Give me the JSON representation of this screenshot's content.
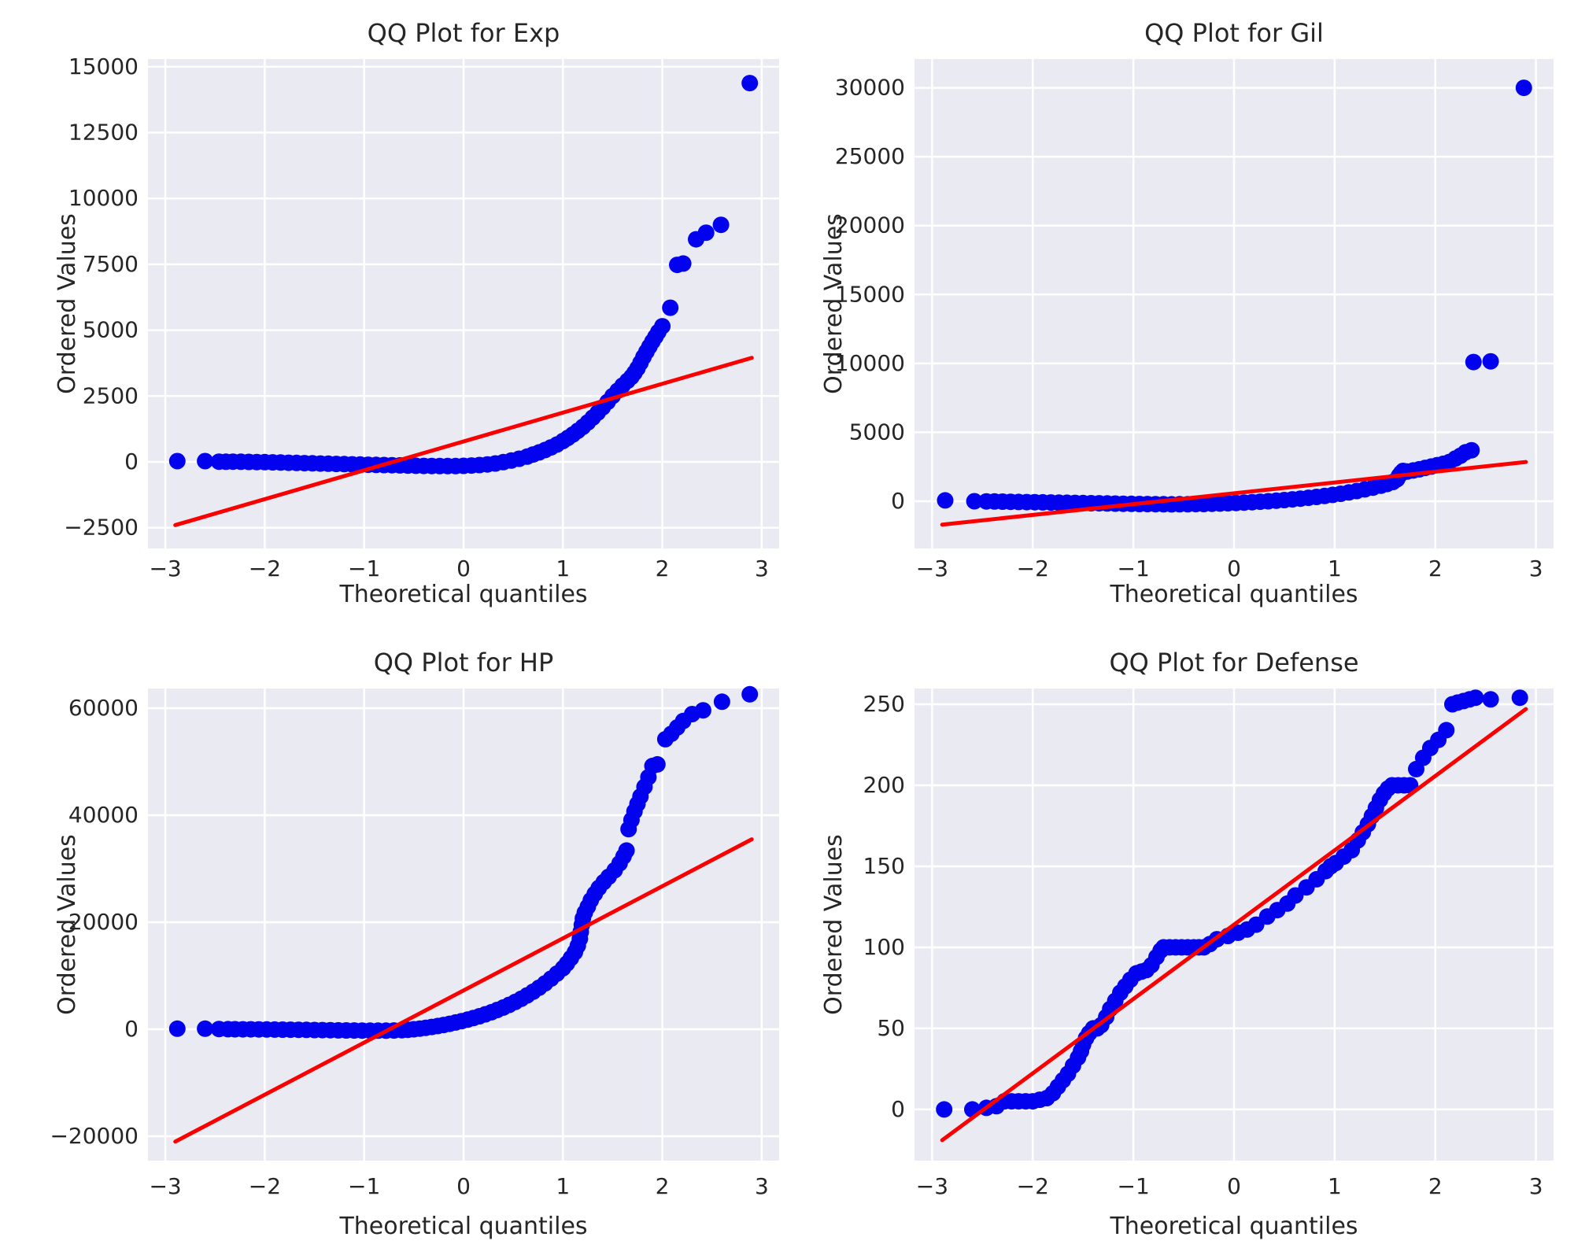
{
  "figure": {
    "background": "#ffffff",
    "axes_background": "#eaeaf2",
    "grid_color": "#ffffff",
    "point_color": "#0202ef",
    "line_color": "#fb0000",
    "text_color": "#262626"
  },
  "chart_data": [
    {
      "type": "scatter",
      "title": "QQ Plot for Exp",
      "xlabel": "Theoretical quantiles",
      "ylabel": "Ordered Values",
      "grid": true,
      "legend": "none",
      "xlim": [
        -3.175,
        3.175
      ],
      "ylim": [
        -3286,
        15293
      ],
      "xticks": [
        -3,
        -2,
        -1,
        0,
        1,
        2,
        3
      ],
      "yticks": [
        -2500,
        0,
        2500,
        5000,
        7500,
        10000,
        12500,
        15000
      ],
      "fit_line": {
        "x": [
          -2.9,
          2.9
        ],
        "y": [
          -2400,
          3950
        ]
      },
      "points": [
        [
          -2.88,
          30
        ],
        [
          -2.6,
          30
        ],
        [
          -2.46,
          10
        ],
        [
          -2.39,
          5
        ],
        [
          -2.32,
          10
        ],
        [
          -2.24,
          5
        ],
        [
          -2.16,
          0
        ],
        [
          -2.08,
          -5
        ],
        [
          -2.0,
          -10
        ],
        [
          -1.92,
          -18
        ],
        [
          -1.84,
          -25
        ],
        [
          -1.76,
          -33
        ],
        [
          -1.68,
          -40
        ],
        [
          -1.6,
          -48
        ],
        [
          -1.52,
          -55
        ],
        [
          -1.44,
          -62
        ],
        [
          -1.36,
          -70
        ],
        [
          -1.28,
          -78
        ],
        [
          -1.2,
          -85
        ],
        [
          -1.12,
          -92
        ],
        [
          -1.04,
          -100
        ],
        [
          -0.96,
          -107
        ],
        [
          -0.88,
          -113
        ],
        [
          -0.8,
          -120
        ],
        [
          -0.72,
          -127
        ],
        [
          -0.64,
          -133
        ],
        [
          -0.56,
          -140
        ],
        [
          -0.48,
          -146
        ],
        [
          -0.4,
          -152
        ],
        [
          -0.32,
          -156
        ],
        [
          -0.24,
          -159
        ],
        [
          -0.16,
          -160
        ],
        [
          -0.08,
          -158
        ],
        [
          0.0,
          -150
        ],
        [
          0.08,
          -138
        ],
        [
          0.16,
          -120
        ],
        [
          0.24,
          -95
        ],
        [
          0.32,
          -60
        ],
        [
          0.4,
          -10
        ],
        [
          0.48,
          50
        ],
        [
          0.56,
          120
        ],
        [
          0.64,
          200
        ],
        [
          0.7,
          280
        ],
        [
          0.76,
          360
        ],
        [
          0.82,
          450
        ],
        [
          0.88,
          550
        ],
        [
          0.94,
          660
        ],
        [
          1.0,
          790
        ],
        [
          1.05,
          910
        ],
        [
          1.1,
          1040
        ],
        [
          1.15,
          1180
        ],
        [
          1.2,
          1330
        ],
        [
          1.25,
          1500
        ],
        [
          1.3,
          1680
        ],
        [
          1.35,
          1870
        ],
        [
          1.4,
          2070
        ],
        [
          1.45,
          2280
        ],
        [
          1.5,
          2500
        ],
        [
          1.55,
          2700
        ],
        [
          1.6,
          2900
        ],
        [
          1.65,
          3080
        ],
        [
          1.69,
          3230
        ],
        [
          1.72,
          3380
        ],
        [
          1.75,
          3550
        ],
        [
          1.78,
          3760
        ],
        [
          1.81,
          3980
        ],
        [
          1.84,
          4180
        ],
        [
          1.87,
          4380
        ],
        [
          1.9,
          4570
        ],
        [
          1.93,
          4750
        ],
        [
          1.96,
          4930
        ],
        [
          2.0,
          5150
        ],
        [
          2.08,
          5850
        ],
        [
          2.15,
          7480
        ],
        [
          2.21,
          7530
        ],
        [
          2.34,
          8450
        ],
        [
          2.44,
          8700
        ],
        [
          2.59,
          9000
        ],
        [
          2.88,
          14380
        ]
      ]
    },
    {
      "type": "scatter",
      "title": "QQ Plot for Gil",
      "xlabel": "Theoretical quantiles",
      "ylabel": "Ordered Values",
      "grid": true,
      "legend": "none",
      "xlim": [
        -3.175,
        3.175
      ],
      "ylim": [
        -3426,
        32090
      ],
      "xticks": [
        -3,
        -2,
        -1,
        0,
        1,
        2,
        3
      ],
      "yticks": [
        0,
        5000,
        10000,
        15000,
        20000,
        25000,
        30000
      ],
      "fit_line": {
        "x": [
          -2.9,
          2.9
        ],
        "y": [
          -1700,
          2850
        ]
      },
      "points": [
        [
          -2.87,
          60
        ],
        [
          -2.58,
          0
        ],
        [
          -2.46,
          -10
        ],
        [
          -2.38,
          -20
        ],
        [
          -2.3,
          -30
        ],
        [
          -2.22,
          -40
        ],
        [
          -2.14,
          -50
        ],
        [
          -2.06,
          -60
        ],
        [
          -1.98,
          -70
        ],
        [
          -1.9,
          -80
        ],
        [
          -1.82,
          -90
        ],
        [
          -1.74,
          -100
        ],
        [
          -1.66,
          -110
        ],
        [
          -1.58,
          -120
        ],
        [
          -1.5,
          -130
        ],
        [
          -1.42,
          -140
        ],
        [
          -1.34,
          -150
        ],
        [
          -1.26,
          -160
        ],
        [
          -1.18,
          -170
        ],
        [
          -1.1,
          -180
        ],
        [
          -1.02,
          -190
        ],
        [
          -0.94,
          -200
        ],
        [
          -0.86,
          -208
        ],
        [
          -0.78,
          -214
        ],
        [
          -0.7,
          -218
        ],
        [
          -0.62,
          -220
        ],
        [
          -0.54,
          -219
        ],
        [
          -0.46,
          -215
        ],
        [
          -0.38,
          -208
        ],
        [
          -0.3,
          -198
        ],
        [
          -0.22,
          -185
        ],
        [
          -0.14,
          -168
        ],
        [
          -0.06,
          -148
        ],
        [
          0.02,
          -125
        ],
        [
          0.1,
          -98
        ],
        [
          0.18,
          -68
        ],
        [
          0.26,
          -35
        ],
        [
          0.34,
          0
        ],
        [
          0.42,
          40
        ],
        [
          0.5,
          85
        ],
        [
          0.58,
          135
        ],
        [
          0.66,
          190
        ],
        [
          0.74,
          250
        ],
        [
          0.82,
          315
        ],
        [
          0.9,
          385
        ],
        [
          0.98,
          460
        ],
        [
          1.06,
          545
        ],
        [
          1.14,
          640
        ],
        [
          1.22,
          745
        ],
        [
          1.3,
          860
        ],
        [
          1.38,
          990
        ],
        [
          1.46,
          1130
        ],
        [
          1.52,
          1250
        ],
        [
          1.58,
          1400
        ],
        [
          1.62,
          1600
        ],
        [
          1.64,
          1850
        ],
        [
          1.66,
          2050
        ],
        [
          1.68,
          2200
        ],
        [
          1.72,
          2150
        ],
        [
          1.78,
          2230
        ],
        [
          1.84,
          2320
        ],
        [
          1.9,
          2420
        ],
        [
          1.96,
          2520
        ],
        [
          2.02,
          2620
        ],
        [
          2.08,
          2720
        ],
        [
          2.14,
          2850
        ],
        [
          2.2,
          3100
        ],
        [
          2.25,
          3300
        ],
        [
          2.3,
          3550
        ],
        [
          2.36,
          3700
        ],
        [
          2.38,
          10100
        ],
        [
          2.55,
          10150
        ],
        [
          2.88,
          30000
        ]
      ]
    },
    {
      "type": "scatter",
      "title": "QQ Plot for HP",
      "xlabel": "Theoretical quantiles",
      "ylabel": "Ordered Values",
      "grid": true,
      "legend": "none",
      "xlim": [
        -3.175,
        3.175
      ],
      "ylim": [
        -24559,
        63677
      ],
      "xticks": [
        -3,
        -2,
        -1,
        0,
        1,
        2,
        3
      ],
      "yticks": [
        -20000,
        0,
        20000,
        40000,
        60000
      ],
      "fit_line": {
        "x": [
          -2.9,
          2.9
        ],
        "y": [
          -21000,
          35500
        ]
      },
      "points": [
        [
          -2.88,
          100
        ],
        [
          -2.6,
          100
        ],
        [
          -2.46,
          50
        ],
        [
          -2.37,
          20
        ],
        [
          -2.3,
          0
        ],
        [
          -2.22,
          -10
        ],
        [
          -2.14,
          -20
        ],
        [
          -2.06,
          -30
        ],
        [
          -1.98,
          -45
        ],
        [
          -1.9,
          -60
        ],
        [
          -1.82,
          -75
        ],
        [
          -1.74,
          -90
        ],
        [
          -1.66,
          -105
        ],
        [
          -1.58,
          -120
        ],
        [
          -1.5,
          -140
        ],
        [
          -1.42,
          -160
        ],
        [
          -1.34,
          -180
        ],
        [
          -1.26,
          -200
        ],
        [
          -1.18,
          -220
        ],
        [
          -1.1,
          -240
        ],
        [
          -1.02,
          -255
        ],
        [
          -0.94,
          -265
        ],
        [
          -0.86,
          -270
        ],
        [
          -0.78,
          -260
        ],
        [
          -0.7,
          -230
        ],
        [
          -0.62,
          -180
        ],
        [
          -0.56,
          -100
        ],
        [
          -0.5,
          0
        ],
        [
          -0.44,
          120
        ],
        [
          -0.38,
          260
        ],
        [
          -0.32,
          420
        ],
        [
          -0.26,
          600
        ],
        [
          -0.2,
          800
        ],
        [
          -0.14,
          1020
        ],
        [
          -0.08,
          1260
        ],
        [
          -0.02,
          1520
        ],
        [
          0.04,
          1800
        ],
        [
          0.1,
          2100
        ],
        [
          0.16,
          2430
        ],
        [
          0.22,
          2790
        ],
        [
          0.28,
          3180
        ],
        [
          0.34,
          3600
        ],
        [
          0.4,
          4060
        ],
        [
          0.46,
          4560
        ],
        [
          0.52,
          5100
        ],
        [
          0.58,
          5690
        ],
        [
          0.64,
          6330
        ],
        [
          0.7,
          7020
        ],
        [
          0.76,
          7770
        ],
        [
          0.82,
          8580
        ],
        [
          0.88,
          9450
        ],
        [
          0.94,
          10400
        ],
        [
          1.0,
          11400
        ],
        [
          1.04,
          12300
        ],
        [
          1.08,
          13300
        ],
        [
          1.12,
          14400
        ],
        [
          1.15,
          15600
        ],
        [
          1.17,
          16900
        ],
        [
          1.18,
          18200
        ],
        [
          1.19,
          19500
        ],
        [
          1.2,
          20700
        ],
        [
          1.22,
          21800
        ],
        [
          1.25,
          22900
        ],
        [
          1.28,
          24100
        ],
        [
          1.32,
          25300
        ],
        [
          1.36,
          26400
        ],
        [
          1.41,
          27500
        ],
        [
          1.46,
          28500
        ],
        [
          1.52,
          29700
        ],
        [
          1.57,
          31000
        ],
        [
          1.61,
          32300
        ],
        [
          1.64,
          33400
        ],
        [
          1.66,
          37400
        ],
        [
          1.69,
          39100
        ],
        [
          1.72,
          40700
        ],
        [
          1.75,
          42100
        ],
        [
          1.78,
          43500
        ],
        [
          1.82,
          45300
        ],
        [
          1.86,
          47100
        ],
        [
          1.9,
          49200
        ],
        [
          1.95,
          49500
        ],
        [
          2.03,
          54200
        ],
        [
          2.09,
          55200
        ],
        [
          2.15,
          56400
        ],
        [
          2.21,
          57600
        ],
        [
          2.3,
          58900
        ],
        [
          2.41,
          59600
        ],
        [
          2.6,
          61200
        ],
        [
          2.88,
          62600
        ]
      ]
    },
    {
      "type": "scatter",
      "title": "QQ Plot for Defense",
      "xlabel": "Theoretical quantiles",
      "ylabel": "Ordered Values",
      "grid": true,
      "legend": "none",
      "xlim": [
        -3.175,
        3.175
      ],
      "ylim": [
        -31.6,
        259.7
      ],
      "xticks": [
        -3,
        -2,
        -1,
        0,
        1,
        2,
        3
      ],
      "yticks": [
        0,
        50,
        100,
        150,
        200,
        250
      ],
      "fit_line": {
        "x": [
          -2.9,
          2.9
        ],
        "y": [
          -19,
          247
        ]
      },
      "points": [
        [
          -2.88,
          0
        ],
        [
          -2.6,
          0
        ],
        [
          -2.46,
          1
        ],
        [
          -2.36,
          2
        ],
        [
          -2.28,
          5
        ],
        [
          -2.21,
          5
        ],
        [
          -2.14,
          5
        ],
        [
          -2.07,
          5
        ],
        [
          -2.0,
          5
        ],
        [
          -1.93,
          6
        ],
        [
          -1.86,
          7
        ],
        [
          -1.8,
          10
        ],
        [
          -1.75,
          14
        ],
        [
          -1.7,
          18
        ],
        [
          -1.65,
          22
        ],
        [
          -1.6,
          27
        ],
        [
          -1.55,
          32
        ],
        [
          -1.52,
          36
        ],
        [
          -1.5,
          40
        ],
        [
          -1.47,
          44
        ],
        [
          -1.44,
          47
        ],
        [
          -1.4,
          50
        ],
        [
          -1.36,
          50
        ],
        [
          -1.32,
          52
        ],
        [
          -1.27,
          57
        ],
        [
          -1.23,
          62
        ],
        [
          -1.18,
          67
        ],
        [
          -1.13,
          72
        ],
        [
          -1.08,
          76
        ],
        [
          -1.03,
          80
        ],
        [
          -0.97,
          84
        ],
        [
          -0.92,
          85
        ],
        [
          -0.87,
          86
        ],
        [
          -0.82,
          89
        ],
        [
          -0.77,
          94
        ],
        [
          -0.73,
          98
        ],
        [
          -0.7,
          100
        ],
        [
          -0.64,
          100
        ],
        [
          -0.58,
          100
        ],
        [
          -0.52,
          100
        ],
        [
          -0.46,
          100
        ],
        [
          -0.4,
          100
        ],
        [
          -0.35,
          100
        ],
        [
          -0.3,
          100
        ],
        [
          -0.24,
          102
        ],
        [
          -0.17,
          105
        ],
        [
          -0.06,
          107
        ],
        [
          0.04,
          109
        ],
        [
          0.13,
          111
        ],
        [
          0.22,
          114
        ],
        [
          0.33,
          119
        ],
        [
          0.43,
          123
        ],
        [
          0.53,
          127
        ],
        [
          0.61,
          132
        ],
        [
          0.72,
          137
        ],
        [
          0.82,
          142
        ],
        [
          0.91,
          147
        ],
        [
          0.96,
          150
        ],
        [
          1.01,
          152
        ],
        [
          1.09,
          156
        ],
        [
          1.17,
          160
        ],
        [
          1.23,
          166
        ],
        [
          1.28,
          171
        ],
        [
          1.33,
          176
        ],
        [
          1.37,
          181
        ],
        [
          1.41,
          186
        ],
        [
          1.45,
          191
        ],
        [
          1.49,
          195
        ],
        [
          1.53,
          198
        ],
        [
          1.57,
          200
        ],
        [
          1.63,
          200
        ],
        [
          1.69,
          200
        ],
        [
          1.75,
          200
        ],
        [
          1.81,
          210
        ],
        [
          1.88,
          217
        ],
        [
          1.95,
          223
        ],
        [
          2.03,
          228
        ],
        [
          2.11,
          234
        ],
        [
          2.17,
          250
        ],
        [
          2.22,
          251
        ],
        [
          2.28,
          252
        ],
        [
          2.34,
          253
        ],
        [
          2.4,
          254
        ],
        [
          2.55,
          253
        ],
        [
          2.84,
          254
        ]
      ]
    }
  ]
}
